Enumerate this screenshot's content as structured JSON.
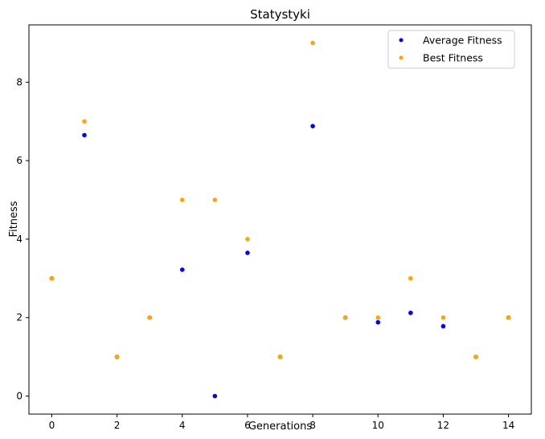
{
  "chart_data": {
    "type": "scatter",
    "title": "Statystyki",
    "xlabel": "Generations",
    "ylabel": "Fitness",
    "xlim": [
      -0.7,
      14.7
    ],
    "ylim": [
      -0.46,
      9.46
    ],
    "xticks": [
      0,
      2,
      4,
      6,
      8,
      10,
      12,
      14
    ],
    "yticks": [
      0,
      2,
      4,
      6,
      8
    ],
    "grid": false,
    "legend_position": "top-right",
    "series": [
      {
        "name": "Average Fitness",
        "color": "#0000ff",
        "x": [
          0,
          1,
          2,
          3,
          4,
          5,
          6,
          7,
          8,
          9,
          10,
          11,
          12,
          13,
          14
        ],
        "y": [
          3,
          6.65,
          1,
          2,
          3.22,
          0,
          3.65,
          1,
          6.88,
          2,
          1.88,
          2.12,
          1.78,
          1,
          2
        ]
      },
      {
        "name": "Best Fitness",
        "color": "#ffa500",
        "x": [
          0,
          1,
          2,
          3,
          4,
          5,
          6,
          7,
          8,
          9,
          10,
          11,
          12,
          13,
          14
        ],
        "y": [
          3,
          7,
          1,
          2,
          5,
          5,
          4,
          1,
          9,
          2,
          2,
          3,
          2,
          1,
          2
        ]
      }
    ]
  }
}
